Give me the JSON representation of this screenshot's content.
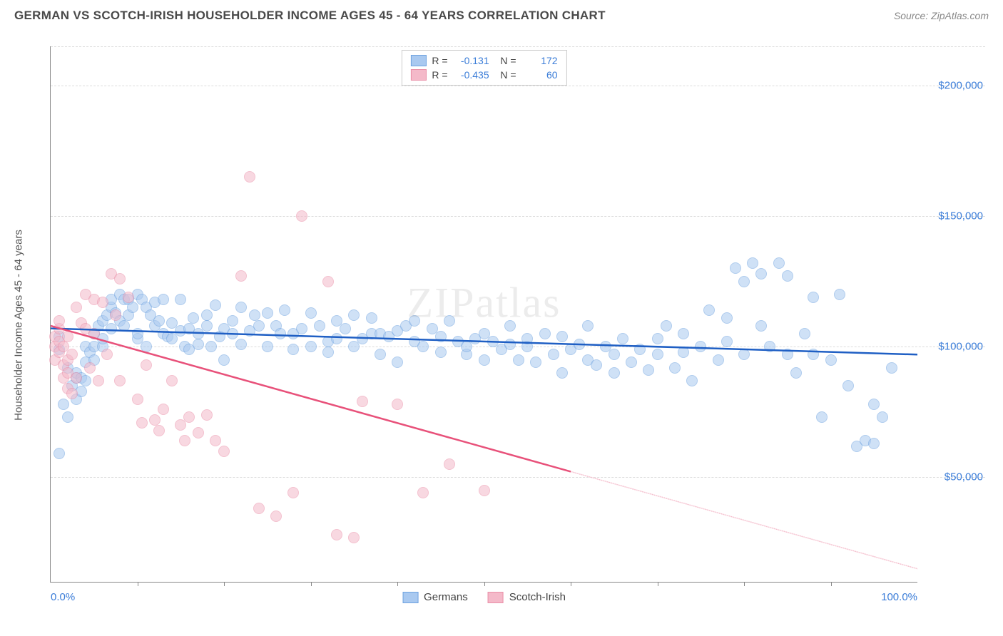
{
  "title": "GERMAN VS SCOTCH-IRISH HOUSEHOLDER INCOME AGES 45 - 64 YEARS CORRELATION CHART",
  "source": "Source: ZipAtlas.com",
  "watermark": "ZIPatlas",
  "y_axis_label": "Householder Income Ages 45 - 64 years",
  "chart": {
    "type": "scatter",
    "background_color": "#ffffff",
    "grid_color": "#dcdcdc",
    "axis_color": "#888888",
    "xlim": [
      0,
      100
    ],
    "ylim": [
      10000,
      215000
    ],
    "x_ticks_minor": [
      10,
      20,
      30,
      40,
      50,
      60,
      70,
      80,
      90
    ],
    "x_tick_labels": [
      {
        "pos": 0,
        "label": "0.0%"
      },
      {
        "pos": 100,
        "label": "100.0%"
      }
    ],
    "y_ticks": [
      {
        "val": 50000,
        "label": "$50,000"
      },
      {
        "val": 100000,
        "label": "$100,000"
      },
      {
        "val": 150000,
        "label": "$150,000"
      },
      {
        "val": 200000,
        "label": "$200,000"
      }
    ],
    "marker_radius": 8,
    "marker_opacity": 0.55,
    "series": [
      {
        "name": "Germans",
        "fill": "#a9c9f0",
        "stroke": "#6fa3e0",
        "line_color": "#1f5fc4",
        "line_width": 2.5,
        "r": "-0.131",
        "n": "172",
        "trend": {
          "x1": 0,
          "y1": 107000,
          "x2": 100,
          "y2": 97000,
          "solid_to": 100
        },
        "points": [
          [
            1,
            59000
          ],
          [
            1,
            99000
          ],
          [
            1,
            104000
          ],
          [
            1.5,
            78000
          ],
          [
            2,
            73000
          ],
          [
            2,
            92000
          ],
          [
            2.5,
            85000
          ],
          [
            3,
            80000
          ],
          [
            3,
            88000
          ],
          [
            3,
            90000
          ],
          [
            3.5,
            83000
          ],
          [
            3.5,
            88000
          ],
          [
            4,
            87000
          ],
          [
            4,
            94000
          ],
          [
            4,
            100000
          ],
          [
            4.5,
            98000
          ],
          [
            5,
            95000
          ],
          [
            5,
            100000
          ],
          [
            5,
            105000
          ],
          [
            5.5,
            108000
          ],
          [
            6,
            100000
          ],
          [
            6,
            103000
          ],
          [
            6,
            110000
          ],
          [
            6.5,
            112000
          ],
          [
            7,
            107000
          ],
          [
            7,
            115000
          ],
          [
            7,
            118000
          ],
          [
            7.5,
            113000
          ],
          [
            8,
            110000
          ],
          [
            8,
            120000
          ],
          [
            8.5,
            108000
          ],
          [
            8.5,
            118000
          ],
          [
            9,
            112000
          ],
          [
            9,
            118000
          ],
          [
            9.5,
            115000
          ],
          [
            10,
            103000
          ],
          [
            10,
            105000
          ],
          [
            10,
            120000
          ],
          [
            10.5,
            118000
          ],
          [
            11,
            100000
          ],
          [
            11,
            115000
          ],
          [
            11.5,
            112000
          ],
          [
            12,
            117000
          ],
          [
            12,
            108000
          ],
          [
            12.5,
            110000
          ],
          [
            13,
            105000
          ],
          [
            13,
            118000
          ],
          [
            13.5,
            104000
          ],
          [
            14,
            109000
          ],
          [
            14,
            103000
          ],
          [
            15,
            118000
          ],
          [
            15,
            106000
          ],
          [
            15.5,
            100000
          ],
          [
            16,
            107000
          ],
          [
            16,
            99000
          ],
          [
            16.5,
            111000
          ],
          [
            17,
            105000
          ],
          [
            17,
            101000
          ],
          [
            18,
            108000
          ],
          [
            18,
            112000
          ],
          [
            18.5,
            100000
          ],
          [
            19,
            116000
          ],
          [
            19.5,
            104000
          ],
          [
            20,
            95000
          ],
          [
            20,
            107000
          ],
          [
            21,
            105000
          ],
          [
            21,
            110000
          ],
          [
            22,
            101000
          ],
          [
            22,
            115000
          ],
          [
            23,
            106000
          ],
          [
            23.5,
            112000
          ],
          [
            24,
            108000
          ],
          [
            25,
            100000
          ],
          [
            25,
            113000
          ],
          [
            26,
            108000
          ],
          [
            26.5,
            105000
          ],
          [
            27,
            114000
          ],
          [
            28,
            99000
          ],
          [
            28,
            105000
          ],
          [
            29,
            107000
          ],
          [
            30,
            113000
          ],
          [
            30,
            100000
          ],
          [
            31,
            108000
          ],
          [
            32,
            102000
          ],
          [
            32,
            98000
          ],
          [
            33,
            103000
          ],
          [
            33,
            110000
          ],
          [
            34,
            107000
          ],
          [
            35,
            100000
          ],
          [
            35,
            112000
          ],
          [
            36,
            103000
          ],
          [
            37,
            105000
          ],
          [
            37,
            111000
          ],
          [
            38,
            97000
          ],
          [
            38,
            105000
          ],
          [
            39,
            104000
          ],
          [
            40,
            106000
          ],
          [
            40,
            94000
          ],
          [
            41,
            108000
          ],
          [
            42,
            102000
          ],
          [
            42,
            110000
          ],
          [
            43,
            100000
          ],
          [
            44,
            107000
          ],
          [
            45,
            98000
          ],
          [
            45,
            104000
          ],
          [
            46,
            110000
          ],
          [
            47,
            102000
          ],
          [
            48,
            97000
          ],
          [
            48,
            100000
          ],
          [
            49,
            103000
          ],
          [
            50,
            95000
          ],
          [
            50,
            105000
          ],
          [
            51,
            102000
          ],
          [
            52,
            99000
          ],
          [
            53,
            101000
          ],
          [
            53,
            108000
          ],
          [
            54,
            95000
          ],
          [
            55,
            100000
          ],
          [
            55,
            103000
          ],
          [
            56,
            94000
          ],
          [
            57,
            105000
          ],
          [
            58,
            97000
          ],
          [
            59,
            90000
          ],
          [
            59,
            104000
          ],
          [
            60,
            99000
          ],
          [
            61,
            101000
          ],
          [
            62,
            95000
          ],
          [
            62,
            108000
          ],
          [
            63,
            93000
          ],
          [
            64,
            100000
          ],
          [
            65,
            90000
          ],
          [
            65,
            97000
          ],
          [
            66,
            103000
          ],
          [
            67,
            94000
          ],
          [
            68,
            99000
          ],
          [
            69,
            91000
          ],
          [
            70,
            97000
          ],
          [
            70,
            103000
          ],
          [
            71,
            108000
          ],
          [
            72,
            92000
          ],
          [
            73,
            98000
          ],
          [
            73,
            105000
          ],
          [
            74,
            87000
          ],
          [
            75,
            100000
          ],
          [
            76,
            114000
          ],
          [
            77,
            95000
          ],
          [
            78,
            102000
          ],
          [
            78,
            111000
          ],
          [
            79,
            130000
          ],
          [
            80,
            97000
          ],
          [
            80,
            125000
          ],
          [
            81,
            132000
          ],
          [
            82,
            108000
          ],
          [
            82,
            128000
          ],
          [
            83,
            100000
          ],
          [
            84,
            132000
          ],
          [
            85,
            97000
          ],
          [
            85,
            127000
          ],
          [
            86,
            90000
          ],
          [
            87,
            105000
          ],
          [
            88,
            97000
          ],
          [
            88,
            119000
          ],
          [
            89,
            73000
          ],
          [
            90,
            95000
          ],
          [
            91,
            120000
          ],
          [
            92,
            85000
          ],
          [
            93,
            62000
          ],
          [
            94,
            64000
          ],
          [
            95,
            63000
          ],
          [
            95,
            78000
          ],
          [
            96,
            73000
          ],
          [
            97,
            92000
          ]
        ]
      },
      {
        "name": "Scotch-Irish",
        "fill": "#f4b9c9",
        "stroke": "#ea8fa8",
        "line_color": "#e8517a",
        "line_width": 2.5,
        "r": "-0.435",
        "n": "60",
        "trend": {
          "x1": 0,
          "y1": 108000,
          "x2": 100,
          "y2": 15000,
          "solid_to": 60
        },
        "points": [
          [
            0.5,
            95000
          ],
          [
            0.5,
            100000
          ],
          [
            0.5,
            104000
          ],
          [
            1,
            98000
          ],
          [
            1,
            102000
          ],
          [
            1,
            107000
          ],
          [
            1,
            110000
          ],
          [
            1.5,
            88000
          ],
          [
            1.5,
            93000
          ],
          [
            1.5,
            100000
          ],
          [
            2,
            84000
          ],
          [
            2,
            90000
          ],
          [
            2,
            95000
          ],
          [
            2,
            104000
          ],
          [
            2.5,
            82000
          ],
          [
            2.5,
            97000
          ],
          [
            3,
            88000
          ],
          [
            3,
            115000
          ],
          [
            3.5,
            109000
          ],
          [
            4,
            107000
          ],
          [
            4,
            120000
          ],
          [
            4.5,
            92000
          ],
          [
            5,
            105000
          ],
          [
            5,
            118000
          ],
          [
            5.5,
            87000
          ],
          [
            6,
            117000
          ],
          [
            6.5,
            97000
          ],
          [
            7,
            128000
          ],
          [
            7.5,
            112000
          ],
          [
            8,
            87000
          ],
          [
            8,
            126000
          ],
          [
            9,
            119000
          ],
          [
            10,
            80000
          ],
          [
            10.5,
            71000
          ],
          [
            11,
            93000
          ],
          [
            12,
            72000
          ],
          [
            12.5,
            68000
          ],
          [
            13,
            76000
          ],
          [
            14,
            87000
          ],
          [
            15,
            70000
          ],
          [
            15.5,
            64000
          ],
          [
            16,
            73000
          ],
          [
            17,
            67000
          ],
          [
            18,
            74000
          ],
          [
            19,
            64000
          ],
          [
            20,
            60000
          ],
          [
            22,
            127000
          ],
          [
            23,
            165000
          ],
          [
            24,
            38000
          ],
          [
            26,
            35000
          ],
          [
            28,
            44000
          ],
          [
            29,
            150000
          ],
          [
            32,
            125000
          ],
          [
            33,
            28000
          ],
          [
            35,
            27000
          ],
          [
            36,
            79000
          ],
          [
            40,
            78000
          ],
          [
            43,
            44000
          ],
          [
            46,
            55000
          ],
          [
            50,
            45000
          ]
        ]
      }
    ],
    "legend_bottom": [
      {
        "label": "Germans",
        "fill": "#a9c9f0",
        "stroke": "#6fa3e0"
      },
      {
        "label": "Scotch-Irish",
        "fill": "#f4b9c9",
        "stroke": "#ea8fa8"
      }
    ]
  }
}
